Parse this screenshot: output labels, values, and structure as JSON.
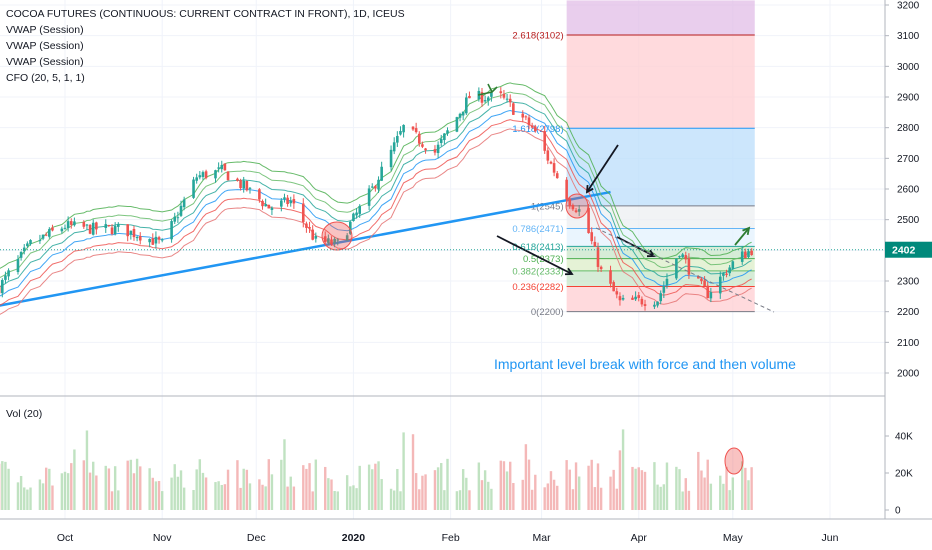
{
  "legend": {
    "title": "COCOA FUTURES (CONTINUOUS: CURRENT CONTRACT IN FRONT), 1D, ICEUS",
    "items": [
      "VWAP (Session)",
      "VWAP (Session)",
      "VWAP (Session)",
      "CFO (20, 5, 1, 1)"
    ]
  },
  "volume_label": "Vol (20)",
  "annotation": "Important level break with force and then volume",
  "current_price": "2402",
  "colors": {
    "up": "#26a69a",
    "down": "#ef5350",
    "trendline": "#2196f3",
    "note": "#2196f3",
    "price_tag": "#00897b"
  },
  "chart_data": {
    "type": "line",
    "title": "COCOA FUTURES (CONTINUOUS: CURRENT CONTRACT IN FRONT), 1D, ICEUS",
    "x_ticks": [
      "Oct",
      "Nov",
      "Dec",
      "2020",
      "Feb",
      "Mar",
      "Apr",
      "May",
      "Jun"
    ],
    "y_ticks": [
      2000,
      2100,
      2200,
      2300,
      2400,
      2500,
      2600,
      2700,
      2800,
      2900,
      3000,
      3100,
      3200
    ],
    "ylim": [
      1910,
      3215
    ],
    "volume_ticks": [
      "0",
      "20K",
      "40K"
    ],
    "price_path": {
      "points": [
        [
          "2019-09-10",
          2280
        ],
        [
          "2019-09-20",
          2420
        ],
        [
          "2019-10-01",
          2480
        ],
        [
          "2019-10-10",
          2470
        ],
        [
          "2019-10-18",
          2470
        ],
        [
          "2019-10-25",
          2450
        ],
        [
          "2019-11-01",
          2420
        ],
        [
          "2019-11-12",
          2640
        ],
        [
          "2019-11-20",
          2660
        ],
        [
          "2019-11-28",
          2600
        ],
        [
          "2019-12-05",
          2540
        ],
        [
          "2019-12-12",
          2560
        ],
        [
          "2019-12-20",
          2430
        ],
        [
          "2019-12-27",
          2420
        ],
        [
          "2020-01-07",
          2600
        ],
        [
          "2020-01-17",
          2800
        ],
        [
          "2020-01-27",
          2720
        ],
        [
          "2020-02-07",
          2900
        ],
        [
          "2020-02-17",
          2900
        ],
        [
          "2020-02-27",
          2800
        ],
        [
          "2020-03-10",
          2560
        ],
        [
          "2020-03-14",
          2520
        ],
        [
          "2020-03-20",
          2330
        ],
        [
          "2020-03-26",
          2230
        ],
        [
          "2020-04-07",
          2240
        ],
        [
          "2020-04-14",
          2400
        ],
        [
          "2020-04-19",
          2300
        ],
        [
          "2020-04-23",
          2260
        ],
        [
          "2020-05-02",
          2370
        ],
        [
          "2020-05-07",
          2402
        ]
      ]
    },
    "fibonacci": {
      "levels": [
        {
          "ratio": "2.618",
          "price": 3102
        },
        {
          "ratio": "1.618",
          "price": 2798
        },
        {
          "ratio": "1",
          "price": 2545
        },
        {
          "ratio": "0.786",
          "price": 2471
        },
        {
          "ratio": "0.618",
          "price": 2413
        },
        {
          "ratio": "0.5",
          "price": 2373
        },
        {
          "ratio": "0.382",
          "price": 2333
        },
        {
          "ratio": "0.236",
          "price": 2282
        },
        {
          "ratio": "0",
          "price": 2200
        }
      ],
      "labels": [
        "2.618(3102)",
        "1.618(2798)",
        "1(2545)",
        "0.786(2471)",
        "0.618(2413)",
        "0.5(2373)",
        "0.382(2333)",
        "0.236(2282)",
        "0(2200)"
      ],
      "date_range": [
        "2020-03-09",
        "2020-05-08"
      ]
    },
    "trendline": [
      [
        "2019-08-20",
        2180
      ],
      [
        "2020-03-23",
        2590
      ]
    ],
    "current_price": 2402
  }
}
